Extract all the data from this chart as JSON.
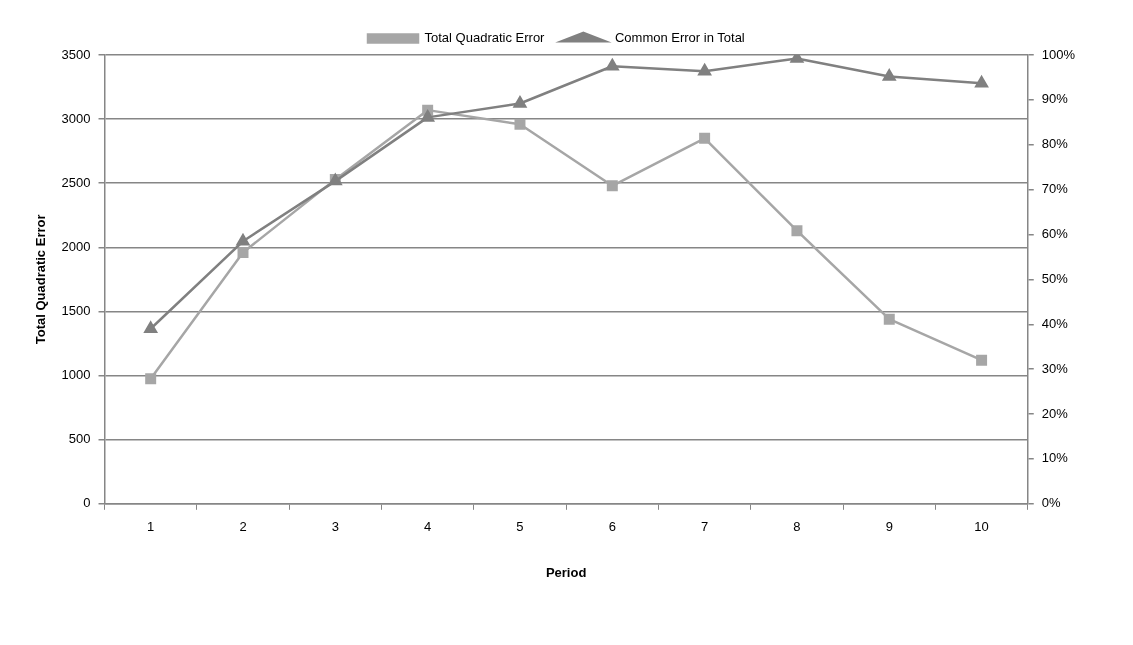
{
  "chart_data": {
    "type": "line",
    "xlabel": "Period",
    "ylabel": "Total Quadratic Error",
    "categories": [
      "1",
      "2",
      "3",
      "4",
      "5",
      "6",
      "7",
      "8",
      "9",
      "10"
    ],
    "series": [
      {
        "name": "Total Quadratic Error",
        "color": "#a6a6a6",
        "marker": "square",
        "values": [
          975,
          1960,
          2530,
          3070,
          2960,
          2480,
          2850,
          2130,
          1440,
          1120
        ]
      },
      {
        "name": "Common Error in Total",
        "color": "#808080",
        "marker": "triangle",
        "axis": "y2",
        "values": [
          39.0,
          58.5,
          71.9,
          86.1,
          89.2,
          97.5,
          96.4,
          99.2,
          95.2,
          93.7
        ]
      }
    ],
    "ylim": [
      0,
      3500
    ],
    "yticks": [
      0,
      500,
      1000,
      1500,
      2000,
      2500,
      3000,
      3500
    ],
    "y2lim": [
      0,
      100
    ],
    "y2ticks": [
      {
        "value": 0,
        "label": "0%"
      },
      {
        "value": 10,
        "label": "10%"
      },
      {
        "value": 20,
        "label": "20%"
      },
      {
        "value": 30,
        "label": "30%"
      },
      {
        "value": 40,
        "label": "40%"
      },
      {
        "value": 50,
        "label": "50%"
      },
      {
        "value": 60,
        "label": "60%"
      },
      {
        "value": 70,
        "label": "70%"
      },
      {
        "value": 80,
        "label": "80%"
      },
      {
        "value": 90,
        "label": "90%"
      },
      {
        "value": 100,
        "label": "100%"
      }
    ],
    "grid": "y",
    "legend": "top",
    "line_style": "solid"
  }
}
